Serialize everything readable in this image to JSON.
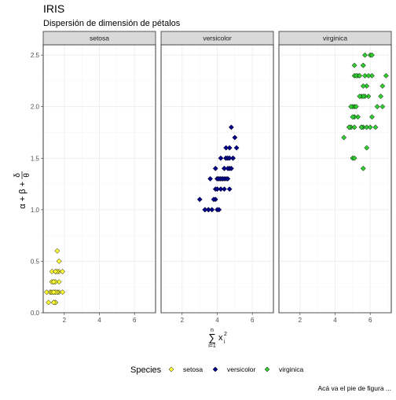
{
  "chart_data": {
    "type": "scatter",
    "title": "IRIS",
    "subtitle": "Dispersión de dimensión de pétalos",
    "caption": "Acá va el pie de figura ...",
    "xlabel": "∑ᵢ₌₁ⁿ xᵢ²",
    "xlabel_parts": {
      "main": "x",
      "sup": "2",
      "sub": "i",
      "op": "∑",
      "upper": "n",
      "lower": "i=1"
    },
    "ylabel": "α + β + δ/θ",
    "ylabel_parts": {
      "left": "α + β +",
      "num": "δ",
      "den": "θ"
    },
    "xlim": [
      0.8,
      7.2
    ],
    "ylim": [
      0,
      2.6
    ],
    "xticks": [
      2,
      4,
      6
    ],
    "yticks": [
      0.0,
      0.5,
      1.0,
      1.5,
      2.0,
      2.5
    ],
    "ytick_labels": [
      "0.0",
      "0.5",
      "1.0",
      "1.5",
      "2.0",
      "2.5"
    ],
    "grid": true,
    "legend": {
      "title": "Species",
      "placement": "bottom"
    },
    "series": [
      {
        "name": "setosa",
        "color": "#ffff33",
        "points": [
          [
            1.4,
            0.2
          ],
          [
            1.4,
            0.2
          ],
          [
            1.3,
            0.2
          ],
          [
            1.5,
            0.2
          ],
          [
            1.4,
            0.2
          ],
          [
            1.7,
            0.4
          ],
          [
            1.4,
            0.3
          ],
          [
            1.5,
            0.2
          ],
          [
            1.4,
            0.2
          ],
          [
            1.5,
            0.1
          ],
          [
            1.5,
            0.2
          ],
          [
            1.6,
            0.2
          ],
          [
            1.4,
            0.1
          ],
          [
            1.1,
            0.1
          ],
          [
            1.2,
            0.2
          ],
          [
            1.5,
            0.4
          ],
          [
            1.3,
            0.4
          ],
          [
            1.4,
            0.3
          ],
          [
            1.7,
            0.3
          ],
          [
            1.5,
            0.3
          ],
          [
            1.7,
            0.2
          ],
          [
            1.5,
            0.4
          ],
          [
            1.0,
            0.2
          ],
          [
            1.7,
            0.5
          ],
          [
            1.9,
            0.2
          ],
          [
            1.6,
            0.2
          ],
          [
            1.6,
            0.4
          ],
          [
            1.5,
            0.2
          ],
          [
            1.4,
            0.2
          ],
          [
            1.6,
            0.2
          ],
          [
            1.6,
            0.2
          ],
          [
            1.5,
            0.4
          ],
          [
            1.5,
            0.1
          ],
          [
            1.4,
            0.2
          ],
          [
            1.5,
            0.2
          ],
          [
            1.2,
            0.2
          ],
          [
            1.3,
            0.2
          ],
          [
            1.4,
            0.1
          ],
          [
            1.3,
            0.2
          ],
          [
            1.5,
            0.2
          ],
          [
            1.3,
            0.3
          ],
          [
            1.3,
            0.3
          ],
          [
            1.3,
            0.2
          ],
          [
            1.6,
            0.6
          ],
          [
            1.9,
            0.4
          ],
          [
            1.4,
            0.3
          ],
          [
            1.6,
            0.2
          ],
          [
            1.4,
            0.2
          ],
          [
            1.5,
            0.2
          ],
          [
            1.4,
            0.2
          ]
        ]
      },
      {
        "name": "versicolor",
        "color": "#00008b",
        "points": [
          [
            4.7,
            1.4
          ],
          [
            4.5,
            1.5
          ],
          [
            4.9,
            1.5
          ],
          [
            4.0,
            1.3
          ],
          [
            4.6,
            1.5
          ],
          [
            4.5,
            1.3
          ],
          [
            4.7,
            1.6
          ],
          [
            3.3,
            1.0
          ],
          [
            4.6,
            1.3
          ],
          [
            3.9,
            1.4
          ],
          [
            3.5,
            1.0
          ],
          [
            4.2,
            1.5
          ],
          [
            4.0,
            1.0
          ],
          [
            4.7,
            1.4
          ],
          [
            3.6,
            1.3
          ],
          [
            4.4,
            1.4
          ],
          [
            4.5,
            1.5
          ],
          [
            4.1,
            1.0
          ],
          [
            4.5,
            1.5
          ],
          [
            3.9,
            1.1
          ],
          [
            4.8,
            1.8
          ],
          [
            4.0,
            1.3
          ],
          [
            4.9,
            1.5
          ],
          [
            4.7,
            1.2
          ],
          [
            4.3,
            1.3
          ],
          [
            4.4,
            1.4
          ],
          [
            4.8,
            1.4
          ],
          [
            5.0,
            1.7
          ],
          [
            4.5,
            1.5
          ],
          [
            3.5,
            1.0
          ],
          [
            3.8,
            1.1
          ],
          [
            3.7,
            1.0
          ],
          [
            3.9,
            1.2
          ],
          [
            5.1,
            1.6
          ],
          [
            4.5,
            1.5
          ],
          [
            4.5,
            1.6
          ],
          [
            4.7,
            1.5
          ],
          [
            4.4,
            1.3
          ],
          [
            4.1,
            1.3
          ],
          [
            4.0,
            1.3
          ],
          [
            4.4,
            1.2
          ],
          [
            4.6,
            1.4
          ],
          [
            4.0,
            1.2
          ],
          [
            3.3,
            1.0
          ],
          [
            4.2,
            1.3
          ],
          [
            4.2,
            1.2
          ],
          [
            4.2,
            1.3
          ],
          [
            4.3,
            1.3
          ],
          [
            3.0,
            1.1
          ],
          [
            4.1,
            1.3
          ]
        ]
      },
      {
        "name": "virginica",
        "color": "#32cd32",
        "points": [
          [
            6.0,
            2.5
          ],
          [
            5.1,
            1.9
          ],
          [
            5.9,
            2.1
          ],
          [
            5.6,
            1.8
          ],
          [
            5.8,
            2.2
          ],
          [
            6.6,
            2.1
          ],
          [
            4.5,
            1.7
          ],
          [
            6.3,
            1.8
          ],
          [
            5.8,
            1.8
          ],
          [
            6.1,
            2.5
          ],
          [
            5.1,
            2.0
          ],
          [
            5.3,
            1.9
          ],
          [
            5.5,
            2.1
          ],
          [
            5.0,
            2.0
          ],
          [
            5.1,
            2.4
          ],
          [
            5.3,
            2.3
          ],
          [
            5.5,
            1.8
          ],
          [
            6.7,
            2.2
          ],
          [
            6.9,
            2.3
          ],
          [
            5.0,
            1.5
          ],
          [
            5.7,
            2.3
          ],
          [
            4.9,
            2.0
          ],
          [
            6.7,
            2.0
          ],
          [
            4.9,
            1.8
          ],
          [
            5.7,
            2.1
          ],
          [
            6.0,
            1.8
          ],
          [
            4.8,
            1.8
          ],
          [
            4.9,
            1.8
          ],
          [
            5.6,
            2.1
          ],
          [
            5.8,
            1.6
          ],
          [
            6.1,
            1.9
          ],
          [
            6.4,
            2.0
          ],
          [
            5.6,
            2.2
          ],
          [
            5.1,
            1.5
          ],
          [
            5.6,
            1.4
          ],
          [
            6.1,
            2.3
          ],
          [
            5.6,
            2.4
          ],
          [
            5.5,
            1.8
          ],
          [
            4.8,
            1.8
          ],
          [
            5.4,
            2.1
          ],
          [
            5.6,
            2.4
          ],
          [
            5.1,
            2.3
          ],
          [
            5.1,
            1.9
          ],
          [
            5.9,
            2.3
          ],
          [
            5.7,
            2.5
          ],
          [
            5.2,
            2.3
          ],
          [
            5.0,
            1.9
          ],
          [
            5.2,
            2.0
          ],
          [
            5.4,
            2.3
          ],
          [
            5.1,
            1.8
          ]
        ]
      }
    ]
  }
}
